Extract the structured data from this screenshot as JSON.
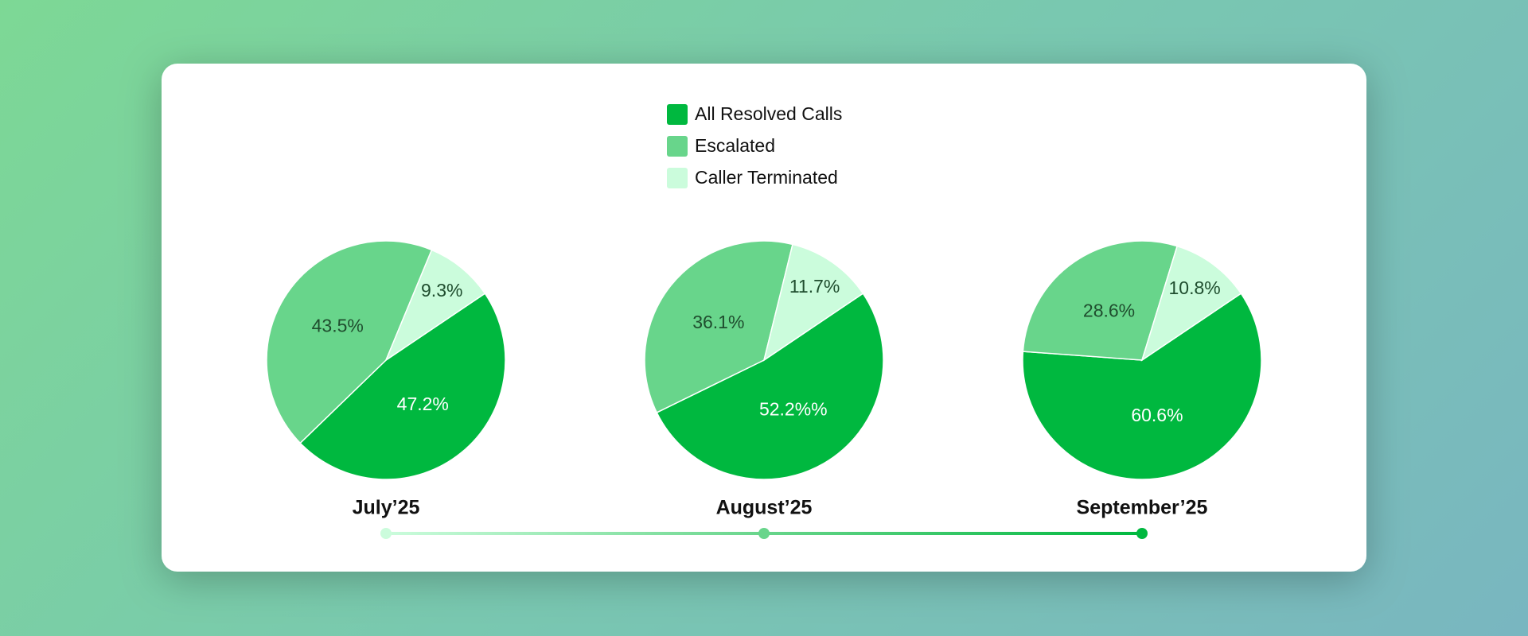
{
  "legend": {
    "names": [
      "All Resolved Calls",
      "Escalated",
      "Caller Terminated"
    ],
    "colors": [
      "#00b83f",
      "#68d58b",
      "#cbfcdc"
    ]
  },
  "chart_data": [
    {
      "type": "pie",
      "title": "July’25",
      "values": [
        47.2,
        43.5,
        9.3
      ],
      "value_labels": [
        "47.2%",
        "43.5%",
        "9.3%"
      ]
    },
    {
      "type": "pie",
      "title": "August’25",
      "values": [
        52.2,
        36.1,
        11.7
      ],
      "value_labels": [
        "52.2%%",
        "36.1%",
        "11.7%"
      ]
    },
    {
      "type": "pie",
      "title": "September’25",
      "values": [
        60.6,
        28.6,
        10.8
      ],
      "value_labels": [
        "60.6%",
        "28.6%",
        "10.8%"
      ]
    }
  ]
}
